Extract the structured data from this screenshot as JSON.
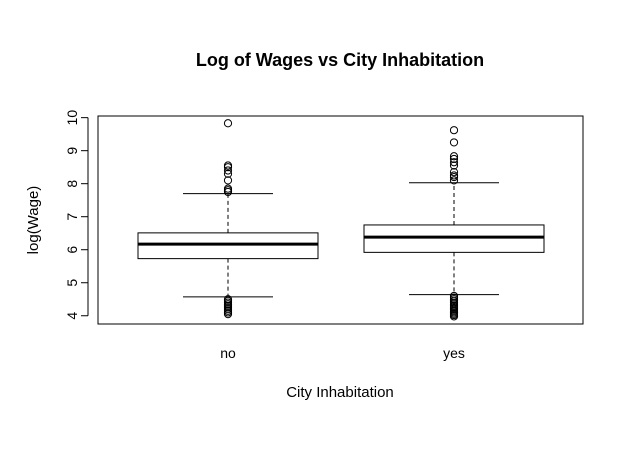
{
  "chart_data": {
    "type": "boxplot",
    "title": "Log of Wages vs City Inhabitation",
    "xlabel": "City Inhabitation",
    "ylabel": "log(Wage)",
    "ylim": [
      3.75,
      10.05
    ],
    "yticks": [
      4,
      5,
      6,
      7,
      8,
      9,
      10
    ],
    "categories": [
      "no",
      "yes"
    ],
    "boxes": [
      {
        "category": "no",
        "whisker_low": 4.57,
        "q1": 5.73,
        "median": 6.17,
        "q3": 6.51,
        "whisker_high": 7.7,
        "outliers_high": [
          7.75,
          7.8,
          7.85,
          8.1,
          8.3,
          8.4,
          8.5,
          8.55,
          9.83
        ],
        "outliers_low": [
          4.05,
          4.1,
          4.15,
          4.2,
          4.25,
          4.3,
          4.35,
          4.4,
          4.45,
          4.5
        ]
      },
      {
        "category": "yes",
        "whisker_low": 4.64,
        "q1": 5.92,
        "median": 6.38,
        "q3": 6.75,
        "whisker_high": 8.03,
        "outliers_high": [
          8.1,
          8.2,
          8.25,
          8.35,
          8.55,
          8.65,
          8.75,
          8.83,
          9.25,
          9.62
        ],
        "outliers_low": [
          3.98,
          4.02,
          4.06,
          4.1,
          4.14,
          4.18,
          4.22,
          4.26,
          4.3,
          4.35,
          4.4,
          4.45,
          4.5,
          4.55,
          4.6
        ]
      }
    ]
  }
}
